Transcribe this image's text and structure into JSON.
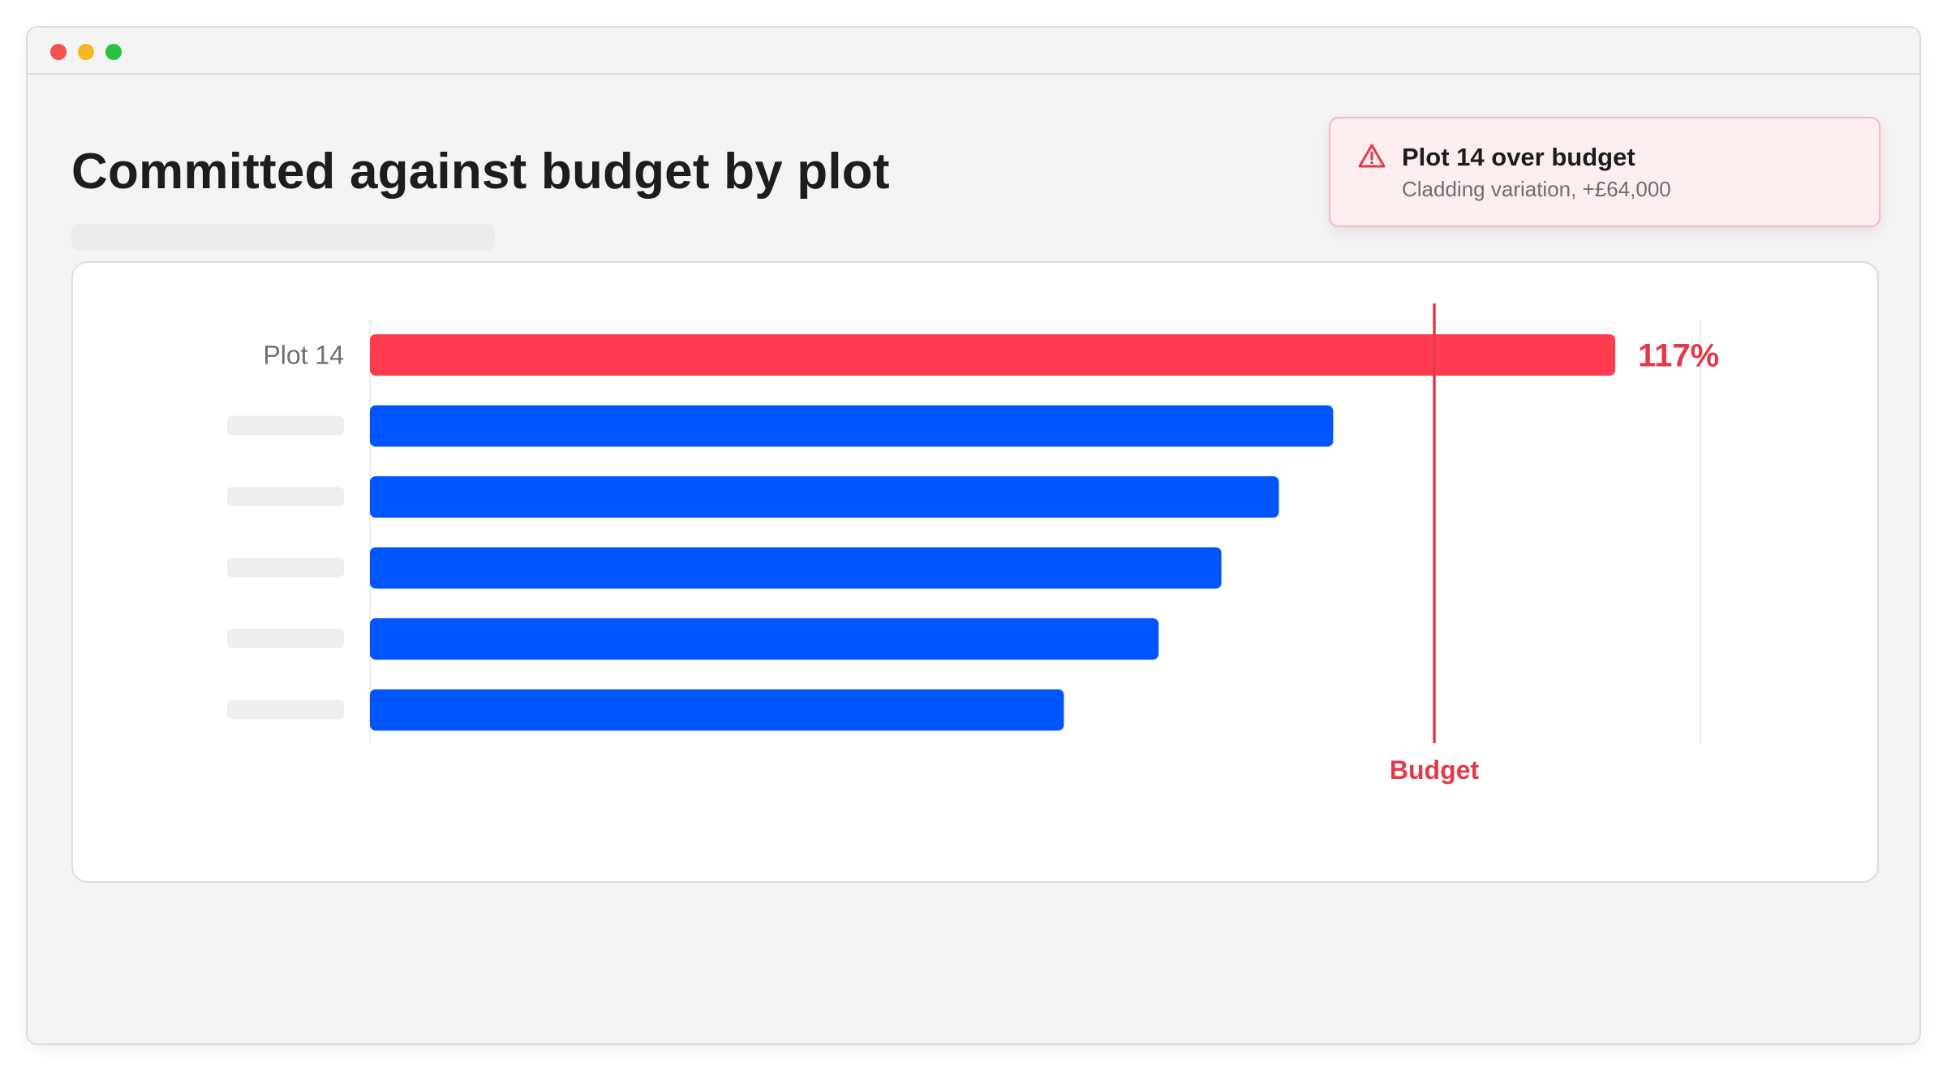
{
  "page": {
    "title": "Committed against budget by plot"
  },
  "alert": {
    "icon": "warning-triangle-icon",
    "title": "Plot 14 over budget",
    "detail": "Cladding variation, +£64,000"
  },
  "colors": {
    "over_budget": "#ff3b4f",
    "on_budget": "#0055ff",
    "budget_line": "#e33a4b",
    "label_placeholder": "#efeff1"
  },
  "chart_data": {
    "type": "bar",
    "orientation": "horizontal",
    "categories": [
      "Plot 14",
      "",
      "",
      "",
      "",
      ""
    ],
    "values": [
      117,
      90.5,
      85.4,
      80,
      74.1,
      65.2
    ],
    "unit": "% of budget",
    "data_labels": [
      "117%",
      "",
      "",
      "",
      "",
      ""
    ],
    "highlight_index": 0,
    "xlim": [
      0,
      125
    ],
    "reference_line": {
      "value": 100,
      "label": "Budget"
    },
    "grid": false,
    "legend": "none"
  }
}
